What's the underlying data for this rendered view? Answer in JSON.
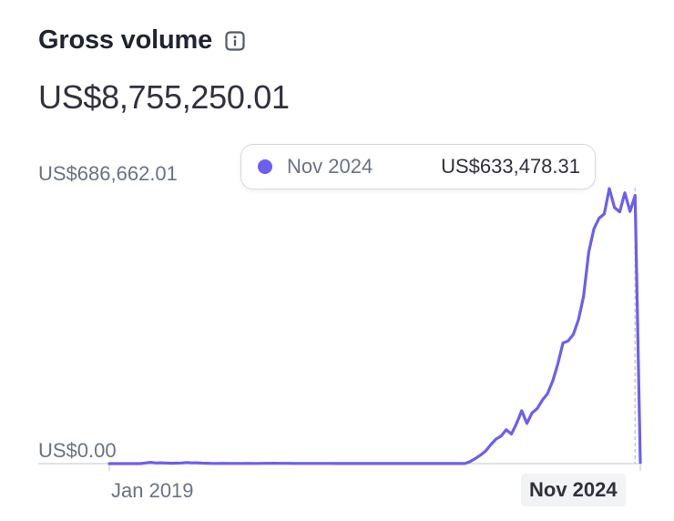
{
  "header": {
    "title": "Gross volume",
    "info_icon": "info-icon"
  },
  "total": "US$8,755,250.01",
  "tooltip": {
    "date": "Nov 2024",
    "value": "US$633,478.31",
    "color": "#6c5ef1"
  },
  "chart_data": {
    "type": "line",
    "title": "Gross volume",
    "currency": "USD",
    "ylim": [
      0,
      686662.01
    ],
    "ytick_labels": [
      "US$686,662.01",
      "US$0.00"
    ],
    "xtick_labels": [
      "Jan 2019",
      "Nov 2024"
    ],
    "x_start": "Jan 2019",
    "x_end": "Dec 2024",
    "highlighted_point": "Nov 2024",
    "grid": false,
    "line_color": "#6c5ef1",
    "series": [
      {
        "values": [
          0,
          0,
          0,
          0,
          0,
          0,
          0,
          1500,
          3000,
          1500,
          2000,
          1200,
          800,
          1000,
          1500,
          2500,
          1800,
          2000,
          1000,
          800,
          500,
          500,
          600,
          500,
          400,
          400,
          500,
          600,
          500,
          500,
          600,
          700,
          800,
          700,
          600,
          600,
          500,
          500,
          500,
          500,
          400,
          400,
          400,
          400,
          300,
          300,
          300,
          300,
          300,
          300,
          300,
          300,
          300,
          300,
          300,
          300,
          200,
          200,
          200,
          200,
          200,
          200,
          200,
          200,
          200,
          200,
          200,
          200,
          200,
          200,
          5000,
          12000,
          20000,
          30000,
          45000,
          58000,
          65000,
          80000,
          70000,
          95000,
          125000,
          95000,
          120000,
          130000,
          150000,
          165000,
          195000,
          235000,
          285000,
          290000,
          305000,
          340000,
          395000,
          500000,
          555000,
          580000,
          590000,
          650000,
          605000,
          595000,
          640000,
          596000,
          633478.31,
          3000
        ]
      }
    ]
  }
}
